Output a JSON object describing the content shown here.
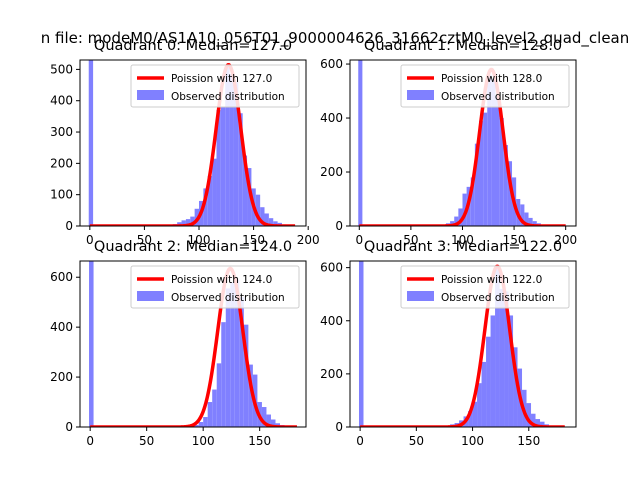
{
  "suptitle": "n file: modeM0/AS1A10_056T01_9000004626_31662cztM0_level2_quad_clean",
  "colors": {
    "bar": "#8080ff",
    "line": "#ff0000",
    "axis": "#000000",
    "legend_edge": "#cccccc"
  },
  "chart_data": [
    {
      "type": "bar",
      "title": "Quadrant 0: Median=127.0",
      "xlim": [
        -9,
        198
      ],
      "ylim": [
        0,
        530
      ],
      "xticks": [
        0,
        50,
        100,
        150,
        200
      ],
      "yticks": [
        0,
        100,
        200,
        300,
        400,
        500
      ],
      "legend": [
        "Poission with 127.0",
        "Observed distribution"
      ],
      "bin_width": 4,
      "zero_bin": 530,
      "bins": [
        [
          72,
          3
        ],
        [
          76,
          6
        ],
        [
          80,
          12
        ],
        [
          84,
          18
        ],
        [
          88,
          22
        ],
        [
          92,
          30
        ],
        [
          96,
          55
        ],
        [
          100,
          80
        ],
        [
          104,
          120
        ],
        [
          108,
          160
        ],
        [
          112,
          215
        ],
        [
          116,
          370
        ],
        [
          120,
          380
        ],
        [
          124,
          510
        ],
        [
          128,
          485
        ],
        [
          132,
          460
        ],
        [
          136,
          360
        ],
        [
          140,
          225
        ],
        [
          144,
          185
        ],
        [
          148,
          120
        ],
        [
          152,
          100
        ],
        [
          156,
          60
        ],
        [
          160,
          40
        ],
        [
          164,
          25
        ],
        [
          168,
          15
        ],
        [
          172,
          10
        ],
        [
          176,
          5
        ],
        [
          180,
          3
        ]
      ],
      "poisson_mean": 127.0,
      "poisson_peak": 515,
      "curve_xmax": 188
    },
    {
      "type": "bar",
      "title": "Quadrant 1: Median=128.0",
      "xlim": [
        -9,
        210
      ],
      "ylim": [
        0,
        615
      ],
      "xticks": [
        0,
        50,
        100,
        150,
        200
      ],
      "yticks": [
        0,
        200,
        400,
        600
      ],
      "legend": [
        "Poission with 128.0",
        "Observed distribution"
      ],
      "bin_width": 4,
      "zero_bin": 615,
      "bins": [
        [
          80,
          4
        ],
        [
          84,
          10
        ],
        [
          88,
          18
        ],
        [
          92,
          35
        ],
        [
          96,
          65
        ],
        [
          100,
          120
        ],
        [
          104,
          145
        ],
        [
          108,
          180
        ],
        [
          112,
          305
        ],
        [
          116,
          390
        ],
        [
          120,
          420
        ],
        [
          124,
          560
        ],
        [
          128,
          545
        ],
        [
          132,
          480
        ],
        [
          136,
          400
        ],
        [
          140,
          300
        ],
        [
          144,
          240
        ],
        [
          148,
          180
        ],
        [
          152,
          100
        ],
        [
          156,
          80
        ],
        [
          160,
          50
        ],
        [
          164,
          30
        ],
        [
          168,
          18
        ],
        [
          172,
          10
        ],
        [
          176,
          5
        ]
      ],
      "poisson_mean": 128.0,
      "poisson_peak": 580,
      "curve_xmax": 200
    },
    {
      "type": "bar",
      "title": "Quadrant 2: Median=124.0",
      "xlim": [
        -9,
        191
      ],
      "ylim": [
        0,
        665
      ],
      "xticks": [
        0,
        50,
        100,
        150
      ],
      "yticks": [
        0,
        200,
        400,
        600
      ],
      "legend": [
        "Poission with 124.0",
        "Observed distribution"
      ],
      "bin_width": 4,
      "zero_bin": 665,
      "bins": [
        [
          88,
          3
        ],
        [
          92,
          8
        ],
        [
          96,
          20
        ],
        [
          100,
          40
        ],
        [
          104,
          100
        ],
        [
          108,
          150
        ],
        [
          112,
          255
        ],
        [
          116,
          420
        ],
        [
          120,
          555
        ],
        [
          124,
          580
        ],
        [
          128,
          590
        ],
        [
          132,
          520
        ],
        [
          136,
          410
        ],
        [
          140,
          250
        ],
        [
          144,
          210
        ],
        [
          148,
          100
        ],
        [
          152,
          80
        ],
        [
          156,
          50
        ],
        [
          160,
          30
        ],
        [
          164,
          15
        ],
        [
          168,
          8
        ],
        [
          172,
          3
        ]
      ],
      "poisson_mean": 124.0,
      "poisson_peak": 635,
      "curve_xmax": 183
    },
    {
      "type": "bar",
      "title": "Quadrant 3: Median=122.0",
      "xlim": [
        -9,
        192
      ],
      "ylim": [
        0,
        625
      ],
      "xticks": [
        0,
        50,
        100,
        150
      ],
      "yticks": [
        0,
        200,
        400,
        600
      ],
      "legend": [
        "Poission with 122.0",
        "Observed distribution"
      ],
      "bin_width": 4,
      "zero_bin": 625,
      "bins": [
        [
          72,
          3
        ],
        [
          76,
          5
        ],
        [
          80,
          10
        ],
        [
          84,
          15
        ],
        [
          88,
          25
        ],
        [
          92,
          40
        ],
        [
          96,
          60
        ],
        [
          100,
          95
        ],
        [
          104,
          165
        ],
        [
          108,
          245
        ],
        [
          112,
          340
        ],
        [
          116,
          420
        ],
        [
          120,
          600
        ],
        [
          124,
          520
        ],
        [
          128,
          510
        ],
        [
          132,
          420
        ],
        [
          136,
          300
        ],
        [
          140,
          220
        ],
        [
          144,
          140
        ],
        [
          148,
          90
        ],
        [
          152,
          50
        ],
        [
          156,
          30
        ],
        [
          160,
          20
        ],
        [
          164,
          10
        ],
        [
          168,
          5
        ]
      ],
      "poisson_mean": 122.0,
      "poisson_peak": 605,
      "curve_xmax": 182
    }
  ]
}
